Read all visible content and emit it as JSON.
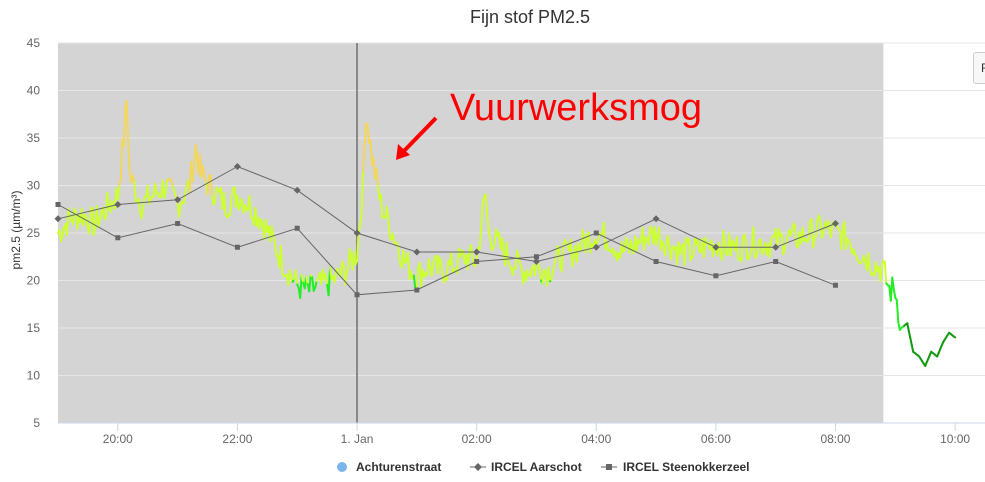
{
  "chart_data": {
    "type": "line",
    "title": "Fijn stof PM2.5",
    "ylabel": "pm2.5 (µm/m³)",
    "xlabel": "",
    "ylim": [
      5,
      45
    ],
    "yticks": [
      5,
      10,
      15,
      20,
      25,
      30,
      35,
      40,
      45
    ],
    "xlim": [
      19,
      34.5
    ],
    "xticks": [
      {
        "x": 20,
        "label": "20:00"
      },
      {
        "x": 22,
        "label": "22:00"
      },
      {
        "x": 24,
        "label": "1. Jan"
      },
      {
        "x": 26,
        "label": "02:00"
      },
      {
        "x": 28,
        "label": "04:00"
      },
      {
        "x": 30,
        "label": "06:00"
      },
      {
        "x": 32,
        "label": "08:00"
      },
      {
        "x": 34,
        "label": "10:00"
      }
    ],
    "grid": true,
    "legend_position": "bottom-center",
    "plot_band": {
      "from": 19,
      "to": 32.8,
      "color": "#d4d4d4"
    },
    "plot_line": {
      "x": 24,
      "color": "#888888"
    },
    "annotation": {
      "text": "Vuurwerksmog",
      "color": "#ff0000"
    },
    "colors": {
      "yellow": "#f2d75c",
      "lime": "#ccff33",
      "green": "#22ee22",
      "darkgreen": "#119911",
      "series_line": "#666666",
      "legend_marker": "#7cb5ec"
    },
    "series": [
      {
        "name": "Achturenstraat",
        "points": [
          [
            19.0,
            25.0
          ],
          [
            19.2,
            26.5
          ],
          [
            19.4,
            27.0
          ],
          [
            19.6,
            26.0
          ],
          [
            19.8,
            27.5
          ],
          [
            20.0,
            29.0
          ],
          [
            20.1,
            35.0
          ],
          [
            20.15,
            39.0
          ],
          [
            20.2,
            31.0
          ],
          [
            20.4,
            28.0
          ],
          [
            20.6,
            29.0
          ],
          [
            20.8,
            30.0
          ],
          [
            21.0,
            28.0
          ],
          [
            21.2,
            30.0
          ],
          [
            21.3,
            34.0
          ],
          [
            21.4,
            31.0
          ],
          [
            21.6,
            29.5
          ],
          [
            21.8,
            28.0
          ],
          [
            22.0,
            29.0
          ],
          [
            22.2,
            28.0
          ],
          [
            22.4,
            26.5
          ],
          [
            22.6,
            24.0
          ],
          [
            22.8,
            21.5
          ],
          [
            23.0,
            19.5
          ],
          [
            23.2,
            19.0
          ],
          [
            23.4,
            19.5
          ],
          [
            23.6,
            20.0
          ],
          [
            23.8,
            21.0
          ],
          [
            24.0,
            23.0
          ],
          [
            24.1,
            30.0
          ],
          [
            24.15,
            38.0
          ],
          [
            24.25,
            33.0
          ],
          [
            24.4,
            28.0
          ],
          [
            24.6,
            25.0
          ],
          [
            24.8,
            22.0
          ],
          [
            25.0,
            20.5
          ],
          [
            25.2,
            21.5
          ],
          [
            25.4,
            21.0
          ],
          [
            25.6,
            21.5
          ],
          [
            25.8,
            22.5
          ],
          [
            26.0,
            22.0
          ],
          [
            26.1,
            27.0
          ],
          [
            26.15,
            29.0
          ],
          [
            26.2,
            25.0
          ],
          [
            26.4,
            23.5
          ],
          [
            26.6,
            22.0
          ],
          [
            26.8,
            21.0
          ],
          [
            27.0,
            21.5
          ],
          [
            27.2,
            21.0
          ],
          [
            27.4,
            22.5
          ],
          [
            27.6,
            23.0
          ],
          [
            27.8,
            24.0
          ],
          [
            28.0,
            25.0
          ],
          [
            28.2,
            24.5
          ],
          [
            28.4,
            23.0
          ],
          [
            28.6,
            23.5
          ],
          [
            28.8,
            24.5
          ],
          [
            29.0,
            25.0
          ],
          [
            29.2,
            24.0
          ],
          [
            29.4,
            23.0
          ],
          [
            29.6,
            23.0
          ],
          [
            29.8,
            23.5
          ],
          [
            30.0,
            24.0
          ],
          [
            30.2,
            23.5
          ],
          [
            30.4,
            23.5
          ],
          [
            30.6,
            24.0
          ],
          [
            30.8,
            24.0
          ],
          [
            31.0,
            24.0
          ],
          [
            31.2,
            24.5
          ],
          [
            31.4,
            24.5
          ],
          [
            31.6,
            25.0
          ],
          [
            31.8,
            25.5
          ],
          [
            32.0,
            25.0
          ],
          [
            32.2,
            24.5
          ],
          [
            32.4,
            23.0
          ],
          [
            32.6,
            22.0
          ],
          [
            32.8,
            21.0
          ],
          [
            32.9,
            19.0
          ],
          [
            33.0,
            19.0
          ],
          [
            33.1,
            15.0
          ],
          [
            33.2,
            15.5
          ],
          [
            33.3,
            12.5
          ],
          [
            33.4,
            12.0
          ],
          [
            33.5,
            11.0
          ],
          [
            33.6,
            12.5
          ],
          [
            33.7,
            12.0
          ],
          [
            33.8,
            13.5
          ],
          [
            33.9,
            14.5
          ],
          [
            34.0,
            14.0
          ]
        ]
      },
      {
        "name": "IRCEL Aarschot",
        "marker": "diamond",
        "points": [
          [
            19.0,
            26.5
          ],
          [
            20.0,
            28.0
          ],
          [
            21.0,
            28.5
          ],
          [
            22.0,
            32.0
          ],
          [
            23.0,
            29.5
          ],
          [
            24.0,
            25.0
          ],
          [
            25.0,
            23.0
          ],
          [
            26.0,
            23.0
          ],
          [
            27.0,
            22.0
          ],
          [
            28.0,
            23.5
          ],
          [
            29.0,
            26.5
          ],
          [
            30.0,
            23.5
          ],
          [
            31.0,
            23.5
          ],
          [
            32.0,
            26.0
          ]
        ]
      },
      {
        "name": "IRCEL Steenokkerzeel",
        "marker": "square",
        "points": [
          [
            19.0,
            28.0
          ],
          [
            20.0,
            24.5
          ],
          [
            21.0,
            26.0
          ],
          [
            22.0,
            23.5
          ],
          [
            23.0,
            25.5
          ],
          [
            24.0,
            18.5
          ],
          [
            25.0,
            19.0
          ],
          [
            26.0,
            22.0
          ],
          [
            27.0,
            22.5
          ],
          [
            28.0,
            25.0
          ],
          [
            29.0,
            22.0
          ],
          [
            30.0,
            20.5
          ],
          [
            31.0,
            22.0
          ],
          [
            32.0,
            19.5
          ]
        ]
      }
    ]
  },
  "ui": {
    "menu_button_label": "F"
  }
}
